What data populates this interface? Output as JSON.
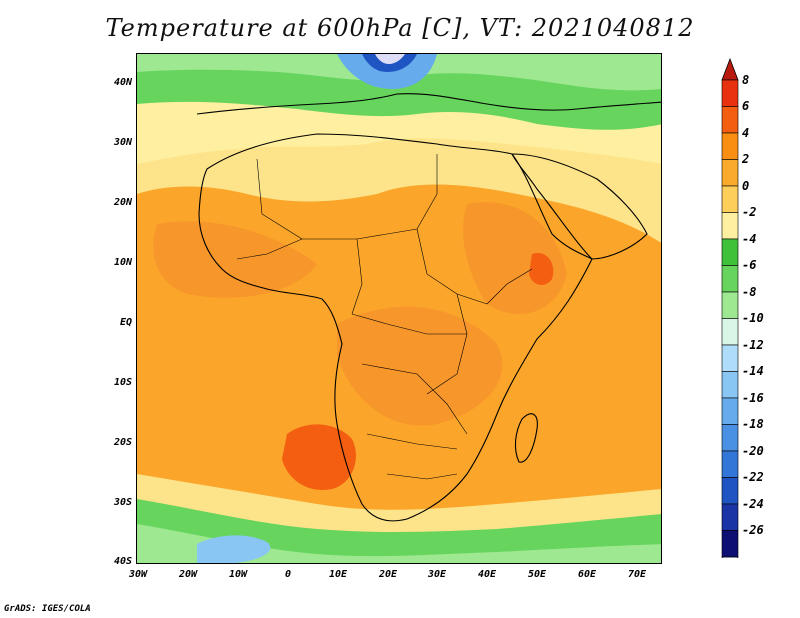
{
  "title": "Temperature at 600hPa [C], VT: 2021040812",
  "credit": "GrADS: IGES/COLA",
  "lat_labels": [
    "40N",
    "30N",
    "20N",
    "10N",
    "EQ",
    "10S",
    "20S",
    "30S",
    "40S"
  ],
  "lon_labels": [
    "30W",
    "20W",
    "10W",
    "0",
    "10E",
    "20E",
    "30E",
    "40E",
    "50E",
    "60E",
    "70E"
  ],
  "colorbar": {
    "labels": [
      "8",
      "6",
      "4",
      "2",
      "0",
      "-2",
      "-4",
      "-6",
      "-8",
      "-10",
      "-12",
      "-14",
      "-16",
      "-18",
      "-20",
      "-22",
      "-24",
      "-26"
    ],
    "colors": [
      "#e8320f",
      "#f45e10",
      "#f98e12",
      "#fbab2c",
      "#fdcf5a",
      "#fef0a0",
      "#3fc23a",
      "#66d45d",
      "#9de890",
      "#d9f7e7",
      "#aedcf9",
      "#8ac6f3",
      "#66acec",
      "#4a91e4",
      "#3276d8",
      "#1e55c2",
      "#1a34a6",
      "#0d0f72"
    ],
    "arrow_colors": {
      "top": "#b81a0f",
      "bottom": "#ddddf8"
    }
  }
}
